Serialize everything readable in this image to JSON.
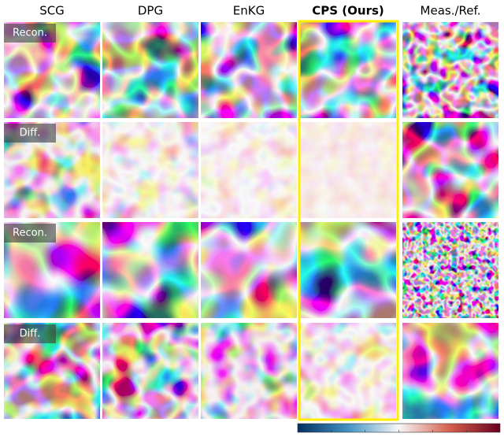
{
  "columns": [
    "SCG",
    "DPG",
    "EnKG",
    "CPS (Ours)",
    "Meas./Ref."
  ],
  "row_labels": [
    "Recon.",
    "Diff.",
    "Recon.",
    "Diff."
  ]
}
